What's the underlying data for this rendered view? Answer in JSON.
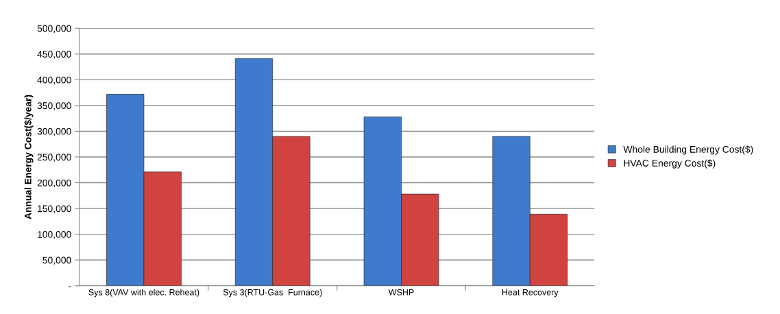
{
  "chart_data": {
    "type": "bar",
    "ylabel": "Annual Energy Cost($/year)",
    "categories": [
      "Sys 8(VAV with elec. Reheat)",
      "Sys 3(RTU-Gas  Furnace)",
      "WSHP",
      "Heat Recovery"
    ],
    "series": [
      {
        "name": "Whole Building Energy Cost($)",
        "color": "#3f7bcc",
        "values": [
          372000,
          441000,
          328000,
          290000
        ]
      },
      {
        "name": "HVAC Energy Cost($)",
        "color": "#d04340",
        "values": [
          221000,
          290000,
          178000,
          139000
        ]
      }
    ],
    "ylim": [
      0,
      500000
    ],
    "yticks": [
      {
        "value": 0,
        "label": "-"
      },
      {
        "value": 50000,
        "label": "50,000"
      },
      {
        "value": 100000,
        "label": "100,000"
      },
      {
        "value": 150000,
        "label": "150,000"
      },
      {
        "value": 200000,
        "label": "200,000"
      },
      {
        "value": 250000,
        "label": "250,000"
      },
      {
        "value": 300000,
        "label": "300,000"
      },
      {
        "value": 350000,
        "label": "350,000"
      },
      {
        "value": 400000,
        "label": "400,000"
      },
      {
        "value": 450000,
        "label": "450,000"
      },
      {
        "value": 500000,
        "label": "500,000"
      }
    ],
    "grid": "y",
    "legend": "right"
  }
}
